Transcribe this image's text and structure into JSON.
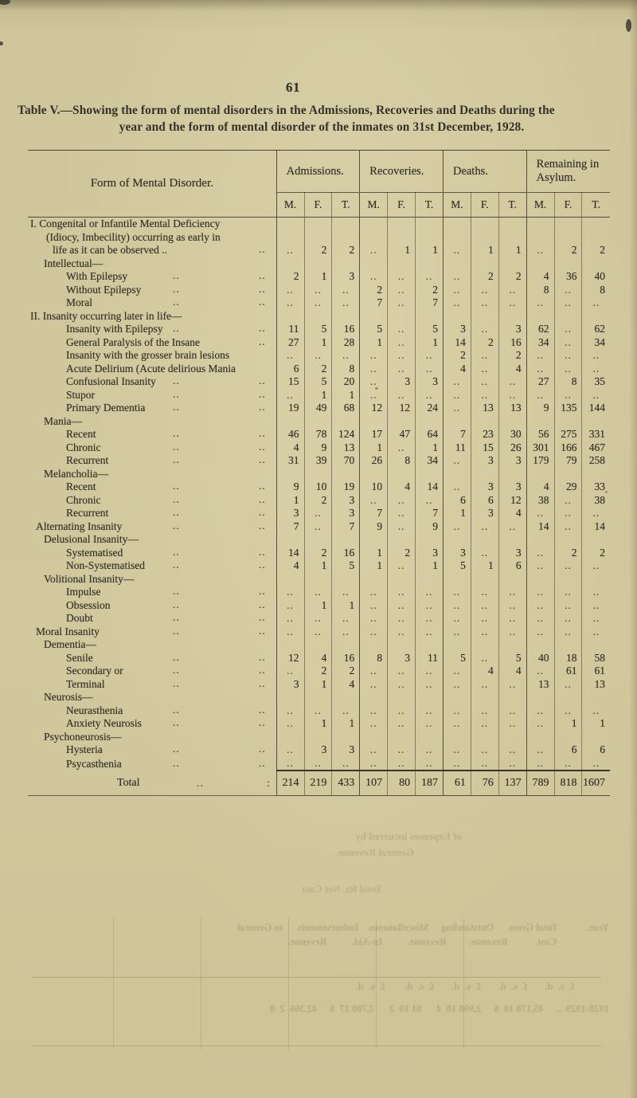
{
  "page": {
    "number": "61"
  },
  "title": {
    "line1": "Table V.—Showing the form of mental disorders in the Admissions, Recoveries and Deaths during the",
    "line2": "year and the form of mental disorder of the inmates on 31st December, 1928."
  },
  "colors": {
    "paper": "#cfc69b",
    "ink": "#35322a",
    "rule": "#4a4636",
    "ghost": "#9c9670"
  },
  "table": {
    "label_header": "Form of Mental Disorder.",
    "groups": [
      "Admissions.",
      "Recoveries.",
      "Deaths.",
      "Remaining in Asylum."
    ],
    "subheaders": [
      "M.",
      "F.",
      "T."
    ],
    "leader": "..",
    "rows": [
      {
        "type": "s",
        "lines": [
          "I. Congenital or Infantile Mental Deficiency",
          "(Idiocy, Imbecility) occurring as early in",
          "life as it can be observed .."
        ],
        "dots": 1,
        "values": [
          "..",
          "2",
          "2",
          "..",
          "1",
          "1",
          "..",
          "1",
          "1",
          "..",
          "2",
          "2"
        ]
      },
      {
        "type": "c",
        "label": "Intellectual—",
        "dots": 0,
        "values": null
      },
      {
        "type": "i",
        "label": "With Epilepsy",
        "dots": 2,
        "values": [
          "2",
          "1",
          "3",
          "..",
          "..",
          "..",
          "..",
          "2",
          "2",
          "4",
          "36",
          "40"
        ]
      },
      {
        "type": "i",
        "label": "Without Epilepsy",
        "dots": 2,
        "values": [
          "..",
          "..",
          "..",
          "2",
          "..",
          "2",
          "..",
          "..",
          "..",
          "8",
          "..",
          "8"
        ]
      },
      {
        "type": "i",
        "label": "Moral",
        "dots": 2,
        "values": [
          "..",
          "..",
          "..",
          "7",
          "..",
          "7",
          "..",
          "..",
          "..",
          "..",
          "..",
          ".."
        ]
      },
      {
        "type": "s",
        "label": "II. Insanity occurring later in life—",
        "dots": 0,
        "values": null
      },
      {
        "type": "i",
        "label": "Insanity with Epilepsy",
        "dots": 2,
        "values": [
          "11",
          "5",
          "16",
          "5",
          "..",
          "5",
          "3",
          "..",
          "3",
          "62",
          "..",
          "62"
        ]
      },
      {
        "type": "i",
        "label": "General Paralysis of the Insane",
        "dots": 1,
        "values": [
          "27",
          "1",
          "28",
          "1",
          "..",
          "1",
          "14",
          "2",
          "16",
          "34",
          "..",
          "34"
        ]
      },
      {
        "type": "i",
        "label": "Insanity with the grosser brain lesions",
        "dots": 0,
        "values": [
          "..",
          "..",
          "..",
          "..",
          "..",
          "..",
          "2",
          "..",
          "2",
          "..",
          "..",
          ".."
        ]
      },
      {
        "type": "i",
        "label": "Acute Delirium (Acute delirious Mania",
        "dots": 0,
        "values": [
          "6",
          "2",
          "8",
          "..",
          "..",
          "..",
          "4",
          "..",
          "4",
          "..",
          "..",
          ".."
        ]
      },
      {
        "type": "i",
        "label": "Confusional Insanity",
        "dots": 2,
        "values": [
          "15",
          "5",
          "20",
          "..",
          "3",
          "3",
          "..",
          "..",
          "..",
          "27",
          "8",
          "35"
        ]
      },
      {
        "type": "i",
        "label": "Stupor",
        "dots": 2,
        "values": [
          "..",
          "1",
          "1",
          "..",
          "..",
          "..",
          "..",
          "..",
          "..",
          "..",
          "..",
          ".."
        ]
      },
      {
        "type": "i",
        "label": "Primary Dementia",
        "dots": 2,
        "values": [
          "19",
          "49",
          "68",
          "12",
          "12",
          "24",
          "..",
          "13",
          "13",
          "9",
          "135",
          "144"
        ]
      },
      {
        "type": "c",
        "label": "Mania—",
        "dots": 0,
        "values": null
      },
      {
        "type": "i",
        "label": "Recent",
        "dots": 2,
        "values": [
          "46",
          "78",
          "124",
          "17",
          "47",
          "64",
          "7",
          "23",
          "30",
          "56",
          "275",
          "331"
        ]
      },
      {
        "type": "i",
        "label": "Chronic",
        "dots": 2,
        "values": [
          "4",
          "9",
          "13",
          "1",
          "..",
          "1",
          "11",
          "15",
          "26",
          "301",
          "166",
          "467"
        ]
      },
      {
        "type": "i",
        "label": "Recurrent",
        "dots": 2,
        "values": [
          "31",
          "39",
          "70",
          "26",
          "8",
          "34",
          "..",
          "3",
          "3",
          "179",
          "79",
          "258"
        ]
      },
      {
        "type": "c",
        "label": "Melancholia—",
        "dots": 0,
        "values": null
      },
      {
        "type": "i",
        "label": "Recent",
        "dots": 2,
        "values": [
          "9",
          "10",
          "19",
          "10",
          "4",
          "14",
          "..",
          "3",
          "3",
          "4",
          "29",
          "33"
        ]
      },
      {
        "type": "i",
        "label": "Chronic",
        "dots": 2,
        "values": [
          "1",
          "2",
          "3",
          "..",
          "..",
          "..",
          "6",
          "6",
          "12",
          "38",
          "..",
          "38"
        ]
      },
      {
        "type": "i",
        "label": "Recurrent",
        "dots": 2,
        "values": [
          "3",
          "..",
          "3",
          "7",
          "..",
          "7",
          "1",
          "3",
          "4",
          "..",
          "..",
          ".."
        ]
      },
      {
        "type": "m",
        "label": "Alternating Insanity",
        "dots": 2,
        "values": [
          "7",
          "..",
          "7",
          "9",
          "..",
          "9",
          "..",
          "..",
          "..",
          "14",
          "..",
          "14"
        ]
      },
      {
        "type": "c",
        "label": "Delusional Insanity—",
        "dots": 0,
        "values": null
      },
      {
        "type": "i",
        "label": "Systematised",
        "dots": 2,
        "values": [
          "14",
          "2",
          "16",
          "1",
          "2",
          "3",
          "3",
          "..",
          "3",
          "..",
          "2",
          "2"
        ]
      },
      {
        "type": "i",
        "label": "Non-Systematised",
        "dots": 2,
        "values": [
          "4",
          "1",
          "5",
          "1",
          "..",
          "1",
          "5",
          "1",
          "6",
          "..",
          "..",
          ".."
        ]
      },
      {
        "type": "c",
        "label": "Volitional Insanity—",
        "dots": 0,
        "values": null
      },
      {
        "type": "i",
        "label": "Impulse",
        "dots": 2,
        "values": [
          "..",
          "..",
          "..",
          "..",
          "..",
          "..",
          "..",
          "..",
          "..",
          "..",
          "..",
          ".."
        ]
      },
      {
        "type": "i",
        "label": "Obsession",
        "dots": 2,
        "values": [
          "..",
          "1",
          "1",
          "..",
          "..",
          "..",
          "..",
          "..",
          "..",
          "..",
          "..",
          ".."
        ]
      },
      {
        "type": "i",
        "label": "Doubt",
        "dots": 2,
        "values": [
          "..",
          "..",
          "..",
          "..",
          "..",
          "..",
          "..",
          "..",
          "..",
          "..",
          "..",
          ".."
        ]
      },
      {
        "type": "m",
        "label": "Moral Insanity",
        "dots": 2,
        "values": [
          "..",
          "..",
          "..",
          "..",
          "..",
          "..",
          "..",
          "..",
          "..",
          "..",
          "..",
          ".."
        ]
      },
      {
        "type": "c",
        "label": "Dementia—",
        "dots": 0,
        "values": null
      },
      {
        "type": "i",
        "label": "Senile",
        "dots": 2,
        "values": [
          "12",
          "4",
          "16",
          "8",
          "3",
          "11",
          "5",
          "..",
          "5",
          "40",
          "18",
          "58"
        ]
      },
      {
        "type": "i",
        "label": "Secondary or",
        "dots": 2,
        "values": [
          "..",
          "2",
          "2",
          "..",
          "..",
          "..",
          "..",
          "4",
          "4",
          "..",
          "61",
          "61"
        ]
      },
      {
        "type": "i",
        "label": "Terminal",
        "dots": 2,
        "values": [
          "3",
          "1",
          "4",
          "..",
          "..",
          "..",
          "..",
          "..",
          "..",
          "13",
          "..",
          "13"
        ]
      },
      {
        "type": "c",
        "label": "Neurosis—",
        "dots": 0,
        "values": null
      },
      {
        "type": "i",
        "label": "Neurasthenia",
        "dots": 2,
        "values": [
          "..",
          "..",
          "..",
          "..",
          "..",
          "..",
          "..",
          "..",
          "..",
          "..",
          "..",
          ".."
        ]
      },
      {
        "type": "i",
        "label": "Anxiety Neurosis",
        "dots": 2,
        "values": [
          "..",
          "1",
          "1",
          "..",
          "..",
          "..",
          "..",
          "..",
          "..",
          "..",
          "1",
          "1"
        ]
      },
      {
        "type": "c",
        "label": "Psychoneurosis—",
        "dots": 0,
        "values": null
      },
      {
        "type": "i",
        "label": "Hysteria",
        "dots": 2,
        "values": [
          "..",
          "3",
          "3",
          "..",
          "..",
          "..",
          "..",
          "..",
          "..",
          "..",
          "6",
          "6"
        ]
      },
      {
        "type": "i",
        "label": "Psycasthenia",
        "dots": 2,
        "values": [
          "..",
          "..",
          "..",
          "..",
          "..",
          "..",
          "..",
          "..",
          "..",
          "..",
          "..",
          ".."
        ]
      }
    ],
    "total_row": {
      "label": "Total",
      "leader": "..",
      "colon": ":",
      "values": [
        "214",
        "219",
        "433",
        "107",
        "80",
        "187",
        "61",
        "76",
        "137",
        "789",
        "818",
        "1607"
      ]
    }
  },
  "bleed_through": {
    "upper_line1": "of Expenses incurred by",
    "upper_line2": "General Revenue.",
    "mid_line": "Total Rs.        Net Cost",
    "header_line1": "Year.            Total Gross      Outstanding     Miscellaneous    Imbursements      to General",
    "header_line2": "                     Cost.           Revenue.         Revenue.          In-Aid.          Revenue.",
    "currency_line": "              £  s.  d.       £  s.  d.       £  s.  d.       £  s.  d.        £  s.  d.",
    "data_line": "1928-1929  ..     45,178 10  6     2,998 18  4      81 10  2      2,780 17  6     42,366  2  0"
  }
}
